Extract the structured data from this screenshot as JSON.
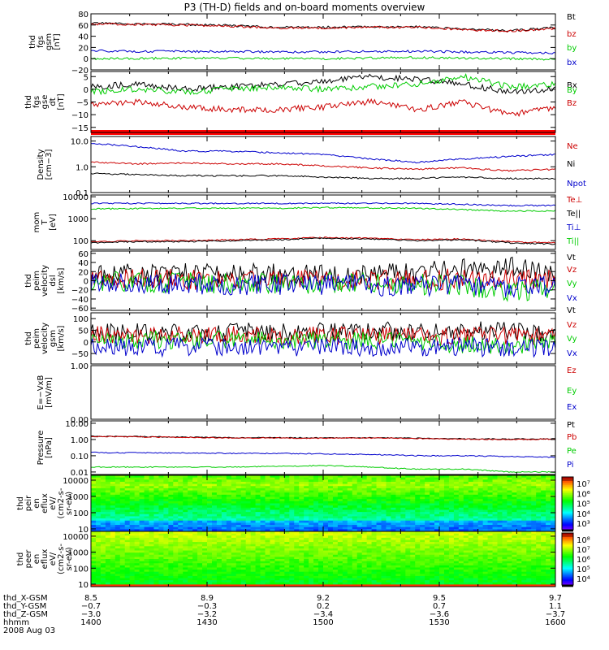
{
  "title": "P3 (TH-D) fields and on-board moments overview",
  "chart_data": [
    {
      "type": "line",
      "panel": "fgs-gsm",
      "ylabel": [
        "thd",
        "fgs",
        "gsm",
        "[nT]"
      ],
      "yticks": [
        "80",
        "60",
        "40",
        "20",
        "0",
        "−20"
      ],
      "ylim": [
        -20,
        80
      ],
      "x": [
        0,
        0.1,
        0.2,
        0.3,
        0.4,
        0.5,
        0.6,
        0.7,
        0.8,
        0.9,
        1
      ],
      "series": [
        {
          "name": "Bt",
          "color": "#000000",
          "values": [
            63,
            62,
            61,
            59,
            56,
            56,
            57,
            57,
            53,
            50,
            55
          ]
        },
        {
          "name": "bz",
          "color": "#cc0000",
          "values": [
            62,
            61,
            60,
            58,
            55,
            55,
            56,
            56,
            52,
            49,
            54
          ]
        },
        {
          "name": "by",
          "color": "#00cc00",
          "values": [
            0,
            0,
            1,
            1,
            0,
            0,
            1,
            2,
            1,
            0,
            -1
          ]
        },
        {
          "name": "bx",
          "color": "#0000cc",
          "values": [
            14,
            13,
            13,
            13,
            12,
            12,
            13,
            13,
            12,
            11,
            10
          ]
        }
      ]
    },
    {
      "type": "line",
      "panel": "fgs-gse-detrend",
      "ylabel": [
        "thd",
        "fgs",
        "gse",
        "dt",
        "[nT]"
      ],
      "yticks": [
        "5",
        "0",
        "−5",
        "−10",
        "−15"
      ],
      "ylim": [
        -17,
        7
      ],
      "x": [
        0,
        0.1,
        0.2,
        0.3,
        0.4,
        0.5,
        0.6,
        0.7,
        0.8,
        0.9,
        1
      ],
      "series": [
        {
          "name": "Bx",
          "color": "#000000",
          "values": [
            1,
            2,
            0,
            1,
            2,
            3,
            5,
            4,
            2,
            -1,
            0
          ]
        },
        {
          "name": "By",
          "color": "#00cc00",
          "values": [
            -1,
            0,
            -1,
            0,
            1,
            0,
            1,
            2,
            5,
            1,
            2
          ]
        },
        {
          "name": "Bz",
          "color": "#cc0000",
          "values": [
            -6,
            -5,
            -7,
            -8,
            -8,
            -7,
            -5,
            -8,
            -5,
            -10,
            -7
          ]
        }
      ]
    },
    {
      "type": "line",
      "panel": "density",
      "ylabel": [
        "Density",
        "[cm−3]"
      ],
      "yticks": [
        "10.0",
        "1.0",
        "0.1"
      ],
      "log": true,
      "ylim": [
        0.1,
        15
      ],
      "x": [
        0,
        0.1,
        0.2,
        0.3,
        0.4,
        0.5,
        0.6,
        0.7,
        0.8,
        0.9,
        1
      ],
      "series": [
        {
          "name": "Ne",
          "color": "#cc0000",
          "values": [
            1.5,
            1.3,
            1.4,
            1.3,
            1.3,
            1.1,
            0.9,
            0.8,
            0.9,
            0.7,
            0.8
          ]
        },
        {
          "name": "Ni",
          "color": "#000000",
          "values": [
            0.55,
            0.5,
            0.45,
            0.45,
            0.45,
            0.4,
            0.35,
            0.35,
            0.4,
            0.35,
            0.35
          ]
        },
        {
          "name": "Npot",
          "color": "#0000cc",
          "values": [
            8,
            6,
            4,
            4,
            3.5,
            3,
            2,
            1.5,
            2,
            2.5,
            3
          ]
        }
      ]
    },
    {
      "type": "line",
      "panel": "temperature",
      "ylabel": [
        "mom",
        "T",
        "[eV]"
      ],
      "yticks": [
        "10000",
        "1000",
        "100"
      ],
      "log": true,
      "ylim": [
        40,
        12000
      ],
      "x": [
        0,
        0.1,
        0.2,
        0.3,
        0.4,
        0.5,
        0.6,
        0.7,
        0.8,
        0.9,
        1
      ],
      "series": [
        {
          "name": "Te⊥",
          "color": "#cc0000",
          "values": [
            90,
            100,
            100,
            110,
            120,
            140,
            130,
            110,
            120,
            90,
            80
          ]
        },
        {
          "name": "Te||",
          "color": "#000000",
          "values": [
            80,
            90,
            90,
            100,
            110,
            130,
            120,
            100,
            110,
            80,
            70
          ]
        },
        {
          "name": "Ti⊥",
          "color": "#0000cc",
          "values": [
            5000,
            5000,
            5000,
            5000,
            5000,
            5000,
            5000,
            5000,
            4500,
            4000,
            4000
          ]
        },
        {
          "name": "Ti||",
          "color": "#00cc00",
          "values": [
            2800,
            2900,
            3000,
            3000,
            3000,
            3200,
            3100,
            3000,
            2600,
            2200,
            2300
          ]
        }
      ]
    },
    {
      "type": "line",
      "panel": "peim-velocity-dsl",
      "ylabel": [
        "thd",
        "peim",
        "velocity",
        "dsl",
        "[km/s]"
      ],
      "yticks": [
        "60",
        "40",
        "20",
        "0",
        "−20",
        "−40",
        "−60"
      ],
      "ylim": [
        -65,
        65
      ],
      "x": [
        0,
        0.1,
        0.2,
        0.3,
        0.4,
        0.5,
        0.6,
        0.7,
        0.8,
        0.9,
        1
      ],
      "series": [
        {
          "name": "Vt",
          "color": "#000000",
          "values": [
            12,
            15,
            15,
            14,
            18,
            16,
            15,
            18,
            25,
            30,
            18
          ]
        },
        {
          "name": "Vz",
          "color": "#cc0000",
          "values": [
            2,
            3,
            2,
            0,
            3,
            2,
            2,
            0,
            5,
            3,
            2
          ]
        },
        {
          "name": "Vy",
          "color": "#00cc00",
          "values": [
            -3,
            -2,
            -5,
            -4,
            -6,
            -5,
            -4,
            -8,
            -10,
            -25,
            -15
          ]
        },
        {
          "name": "Vx",
          "color": "#0000cc",
          "values": [
            -6,
            -8,
            -6,
            -10,
            -8,
            -10,
            -10,
            -12,
            -8,
            -15,
            -10
          ]
        }
      ]
    },
    {
      "type": "line",
      "panel": "peim-velocity-gsm",
      "ylabel": [
        "thd",
        "peim",
        "velocity",
        "gsm",
        "[km/s]"
      ],
      "yticks": [
        "100",
        "50",
        "0",
        "−50"
      ],
      "ylim": [
        -95,
        125
      ],
      "x": [
        0,
        0.1,
        0.2,
        0.3,
        0.4,
        0.5,
        0.6,
        0.7,
        0.8,
        0.9,
        1
      ],
      "series": [
        {
          "name": "Vt",
          "color": "#000000",
          "values": [
            40,
            40,
            38,
            42,
            45,
            45,
            50,
            40,
            50,
            45,
            35
          ]
        },
        {
          "name": "Vz",
          "color": "#cc0000",
          "values": [
            30,
            25,
            28,
            30,
            25,
            28,
            25,
            20,
            30,
            25,
            25
          ]
        },
        {
          "name": "Vy",
          "color": "#00cc00",
          "values": [
            10,
            5,
            8,
            10,
            5,
            8,
            5,
            0,
            -10,
            -20,
            -5
          ]
        },
        {
          "name": "Vx",
          "color": "#0000cc",
          "values": [
            -20,
            -25,
            -20,
            -20,
            -25,
            -20,
            -25,
            -25,
            -20,
            -30,
            -25
          ]
        }
      ]
    },
    {
      "type": "line",
      "panel": "e-vxb",
      "ylabel": [
        "E=−VxB",
        "[mV/m]"
      ],
      "yticks": [
        "1.00",
        "0.00"
      ],
      "ylim": [
        0,
        1
      ],
      "x": [],
      "series": [
        {
          "name": "Ez",
          "color": "#cc0000",
          "values": []
        },
        {
          "name": "Ey",
          "color": "#00cc00",
          "values": []
        },
        {
          "name": "Ex",
          "color": "#0000cc",
          "values": []
        }
      ]
    },
    {
      "type": "line",
      "panel": "pressure",
      "ylabel": [
        "Pressure",
        "[nPa]"
      ],
      "yticks": [
        "10.00",
        "1.00",
        "0.10",
        "0.01"
      ],
      "log": true,
      "ylim": [
        0.007,
        14
      ],
      "x": [
        0,
        0.1,
        0.2,
        0.3,
        0.4,
        0.5,
        0.6,
        0.7,
        0.8,
        0.9,
        1
      ],
      "series": [
        {
          "name": "Pt",
          "color": "#000000",
          "values": [
            1.6,
            1.5,
            1.4,
            1.3,
            1.3,
            1.25,
            1.3,
            1.2,
            1.1,
            1.05,
            1.1
          ]
        },
        {
          "name": "Pb",
          "color": "#cc0000",
          "values": [
            1.55,
            1.45,
            1.35,
            1.25,
            1.25,
            1.2,
            1.25,
            1.15,
            1.05,
            1.0,
            1.05
          ]
        },
        {
          "name": "Pe",
          "color": "#00cc00",
          "values": [
            0.02,
            0.02,
            0.02,
            0.02,
            0.022,
            0.025,
            0.02,
            0.015,
            0.015,
            0.01,
            0.01
          ]
        },
        {
          "name": "Pi",
          "color": "#0000cc",
          "values": [
            0.16,
            0.15,
            0.15,
            0.14,
            0.14,
            0.13,
            0.12,
            0.1,
            0.1,
            0.09,
            0.08
          ]
        }
      ]
    },
    {
      "type": "heatmap",
      "panel": "peir-eflux",
      "ylabel": [
        "thd",
        "peir",
        "en",
        "eflux",
        "eV/",
        "(cm2-s-",
        "sr-eV)"
      ],
      "yticks": [
        "10000",
        "1000",
        "100",
        "10"
      ],
      "log": true,
      "ylim": [
        7,
        20000
      ],
      "colorbar_ticks": [
        "10⁷",
        "10⁶",
        "10⁵",
        "10⁴",
        "10³"
      ]
    },
    {
      "type": "heatmap",
      "panel": "peer-eflux",
      "ylabel": [
        "thd",
        "peer",
        "en",
        "eflux",
        "eV/",
        "(cm2-s-",
        "sr-eV)"
      ],
      "yticks": [
        "10000",
        "1000",
        "100",
        "10"
      ],
      "log": true,
      "ylim": [
        7,
        20000
      ],
      "colorbar_ticks": [
        "10⁸",
        "10⁷",
        "10⁶",
        "10⁵",
        "10⁴"
      ]
    }
  ],
  "x_axis": {
    "tick_rows": [
      {
        "label": "thd_X-GSM",
        "values": [
          "8.5",
          "8.9",
          "9.2",
          "9.5",
          "9.7"
        ]
      },
      {
        "label": "thd_Y-GSM",
        "values": [
          "−0.7",
          "−0.3",
          "0.2",
          "0.7",
          "1.1"
        ]
      },
      {
        "label": "thd_Z-GSM",
        "values": [
          "−3.0",
          "−3.2",
          "−3.4",
          "−3.6",
          "−3.7"
        ]
      },
      {
        "label": "hhmm",
        "values": [
          "1400",
          "1430",
          "1500",
          "1530",
          "1600"
        ]
      }
    ],
    "date": "2008 Aug 03"
  }
}
